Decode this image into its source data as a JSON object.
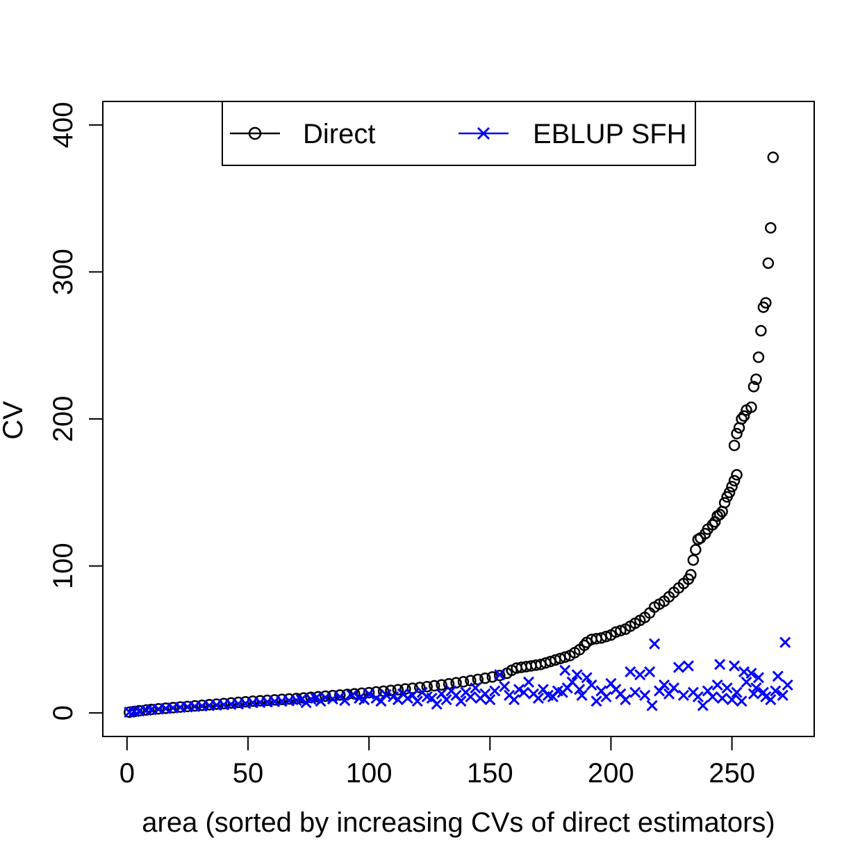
{
  "chart_data": {
    "type": "scatter",
    "xlabel": "area (sorted by increasing CVs of direct estimators)",
    "ylabel": "CV",
    "xlim": [
      -10,
      284
    ],
    "ylim": [
      -16,
      416
    ],
    "x_ticks": [
      0,
      50,
      100,
      150,
      200,
      250
    ],
    "y_ticks": [
      0,
      100,
      200,
      300,
      400
    ],
    "grid": false,
    "legend_position": "top-center",
    "series": [
      {
        "name": "Direct",
        "marker": "circle",
        "color": "#000000",
        "points": [
          [
            1,
            0.5
          ],
          [
            3,
            1
          ],
          [
            5,
            1.5
          ],
          [
            8,
            2
          ],
          [
            10,
            2.4
          ],
          [
            13,
            2.8
          ],
          [
            16,
            3.2
          ],
          [
            19,
            3.6
          ],
          [
            22,
            4
          ],
          [
            25,
            4.4
          ],
          [
            28,
            4.8
          ],
          [
            31,
            5.2
          ],
          [
            34,
            5.6
          ],
          [
            37,
            6
          ],
          [
            40,
            6.4
          ],
          [
            43,
            6.8
          ],
          [
            46,
            7.2
          ],
          [
            49,
            7.6
          ],
          [
            52,
            8
          ],
          [
            55,
            8.3
          ],
          [
            58,
            8.6
          ],
          [
            61,
            8.9
          ],
          [
            64,
            9.2
          ],
          [
            67,
            9.5
          ],
          [
            70,
            9.8
          ],
          [
            73,
            10.2
          ],
          [
            76,
            10.6
          ],
          [
            79,
            11
          ],
          [
            82,
            11.4
          ],
          [
            85,
            11.8
          ],
          [
            88,
            12.2
          ],
          [
            91,
            12.6
          ],
          [
            94,
            13
          ],
          [
            97,
            13.4
          ],
          [
            100,
            13.8
          ],
          [
            103,
            14.3
          ],
          [
            106,
            14.8
          ],
          [
            109,
            15.3
          ],
          [
            112,
            15.8
          ],
          [
            115,
            16.3
          ],
          [
            118,
            16.8
          ],
          [
            121,
            17.3
          ],
          [
            124,
            17.9
          ],
          [
            127,
            18.5
          ],
          [
            130,
            19.1
          ],
          [
            133,
            19.8
          ],
          [
            136,
            20.5
          ],
          [
            139,
            21.2
          ],
          [
            142,
            22
          ],
          [
            145,
            22.8
          ],
          [
            148,
            23.6
          ],
          [
            151,
            24.5
          ],
          [
            154,
            25.5
          ],
          [
            157,
            27
          ],
          [
            159,
            29
          ],
          [
            161,
            30.5
          ],
          [
            163,
            31
          ],
          [
            165,
            31.5
          ],
          [
            167,
            32
          ],
          [
            169,
            32.5
          ],
          [
            171,
            33
          ],
          [
            173,
            34
          ],
          [
            175,
            35
          ],
          [
            177,
            36
          ],
          [
            179,
            37
          ],
          [
            181,
            38
          ],
          [
            183,
            39
          ],
          [
            185,
            41
          ],
          [
            187,
            43
          ],
          [
            189,
            46
          ],
          [
            190,
            48
          ],
          [
            192,
            50
          ],
          [
            194,
            50.5
          ],
          [
            196,
            51
          ],
          [
            198,
            52
          ],
          [
            200,
            53
          ],
          [
            202,
            55
          ],
          [
            204,
            56
          ],
          [
            206,
            57
          ],
          [
            208,
            59
          ],
          [
            210,
            61
          ],
          [
            212,
            63
          ],
          [
            214,
            65
          ],
          [
            216,
            68
          ],
          [
            218,
            72
          ],
          [
            220,
            74
          ],
          [
            222,
            76
          ],
          [
            224,
            79
          ],
          [
            226,
            82
          ],
          [
            228,
            85
          ],
          [
            230,
            88
          ],
          [
            232,
            91
          ],
          [
            233,
            94
          ],
          [
            234,
            104
          ],
          [
            235,
            111
          ],
          [
            236,
            118
          ],
          [
            237,
            119
          ],
          [
            239,
            122
          ],
          [
            240,
            125
          ],
          [
            242,
            128
          ],
          [
            243,
            130
          ],
          [
            244,
            134
          ],
          [
            245,
            135
          ],
          [
            246,
            137
          ],
          [
            247,
            143
          ],
          [
            248,
            147
          ],
          [
            249,
            150
          ],
          [
            250,
            154
          ],
          [
            251,
            158
          ],
          [
            252,
            162
          ],
          [
            251,
            182
          ],
          [
            252,
            190
          ],
          [
            253,
            194
          ],
          [
            254,
            200
          ],
          [
            255,
            202
          ],
          [
            256,
            206
          ],
          [
            258,
            208
          ],
          [
            259,
            222
          ],
          [
            260,
            227
          ],
          [
            261,
            242
          ],
          [
            262,
            260
          ],
          [
            263,
            276
          ],
          [
            264,
            279
          ],
          [
            265,
            306
          ],
          [
            266,
            330
          ],
          [
            267,
            378
          ]
        ]
      },
      {
        "name": "EBLUP SFH",
        "marker": "cross",
        "color": "#0000ff",
        "points": [
          [
            1,
            0.5
          ],
          [
            3,
            1
          ],
          [
            5,
            1.3
          ],
          [
            8,
            1.8
          ],
          [
            10,
            2.2
          ],
          [
            13,
            2.6
          ],
          [
            16,
            3
          ],
          [
            19,
            3.4
          ],
          [
            22,
            3.8
          ],
          [
            25,
            4.1
          ],
          [
            28,
            4.4
          ],
          [
            31,
            4.7
          ],
          [
            34,
            5
          ],
          [
            37,
            5.3
          ],
          [
            40,
            5.6
          ],
          [
            43,
            5.9
          ],
          [
            46,
            6.1
          ],
          [
            49,
            6.4
          ],
          [
            52,
            7
          ],
          [
            55,
            7.2
          ],
          [
            58,
            7.5
          ],
          [
            61,
            7.8
          ],
          [
            64,
            8
          ],
          [
            67,
            8.3
          ],
          [
            70,
            8.6
          ],
          [
            72,
            9
          ],
          [
            74,
            7
          ],
          [
            76,
            9.4
          ],
          [
            78,
            10
          ],
          [
            80,
            8
          ],
          [
            82,
            10.5
          ],
          [
            85,
            9.5
          ],
          [
            88,
            11
          ],
          [
            90,
            8.5
          ],
          [
            93,
            12
          ],
          [
            96,
            10
          ],
          [
            98,
            9
          ],
          [
            100,
            13
          ],
          [
            103,
            10
          ],
          [
            105,
            8
          ],
          [
            107,
            12.5
          ],
          [
            110,
            11
          ],
          [
            112,
            9
          ],
          [
            114,
            13
          ],
          [
            116,
            10
          ],
          [
            118,
            12
          ],
          [
            120,
            8
          ],
          [
            122,
            14
          ],
          [
            124,
            11
          ],
          [
            126,
            10
          ],
          [
            128,
            6
          ],
          [
            130,
            13
          ],
          [
            132,
            9
          ],
          [
            134,
            15
          ],
          [
            136,
            12
          ],
          [
            138,
            8
          ],
          [
            140,
            14
          ],
          [
            142,
            11
          ],
          [
            144,
            17
          ],
          [
            146,
            10
          ],
          [
            148,
            13
          ],
          [
            150,
            9
          ],
          [
            152,
            15
          ],
          [
            154,
            26
          ],
          [
            156,
            18
          ],
          [
            158,
            12
          ],
          [
            160,
            9
          ],
          [
            162,
            16
          ],
          [
            164,
            14
          ],
          [
            166,
            21
          ],
          [
            168,
            13
          ],
          [
            170,
            10
          ],
          [
            172,
            16
          ],
          [
            174,
            12
          ],
          [
            176,
            11
          ],
          [
            178,
            15
          ],
          [
            180,
            14
          ],
          [
            181,
            29
          ],
          [
            182,
            17
          ],
          [
            184,
            21
          ],
          [
            186,
            26
          ],
          [
            187,
            16
          ],
          [
            188,
            12
          ],
          [
            190,
            24
          ],
          [
            192,
            19
          ],
          [
            194,
            8
          ],
          [
            196,
            15
          ],
          [
            198,
            11
          ],
          [
            200,
            20
          ],
          [
            202,
            16
          ],
          [
            204,
            13
          ],
          [
            206,
            9
          ],
          [
            208,
            28
          ],
          [
            210,
            14
          ],
          [
            212,
            26
          ],
          [
            214,
            12
          ],
          [
            216,
            28
          ],
          [
            217,
            5
          ],
          [
            218,
            47
          ],
          [
            220,
            15
          ],
          [
            222,
            19
          ],
          [
            224,
            13
          ],
          [
            226,
            17
          ],
          [
            228,
            31
          ],
          [
            230,
            12
          ],
          [
            232,
            32
          ],
          [
            234,
            14
          ],
          [
            236,
            11
          ],
          [
            238,
            5
          ],
          [
            240,
            15
          ],
          [
            242,
            11
          ],
          [
            244,
            19
          ],
          [
            245,
            33
          ],
          [
            246,
            10
          ],
          [
            248,
            17
          ],
          [
            250,
            9
          ],
          [
            251,
            32
          ],
          [
            252,
            14
          ],
          [
            254,
            8
          ],
          [
            255,
            28
          ],
          [
            256,
            21
          ],
          [
            258,
            27
          ],
          [
            259,
            13
          ],
          [
            260,
            17
          ],
          [
            261,
            24
          ],
          [
            263,
            14
          ],
          [
            264,
            11
          ],
          [
            266,
            9
          ],
          [
            268,
            15
          ],
          [
            269,
            25
          ],
          [
            271,
            12
          ],
          [
            272,
            48
          ],
          [
            273,
            19
          ]
        ]
      }
    ]
  }
}
